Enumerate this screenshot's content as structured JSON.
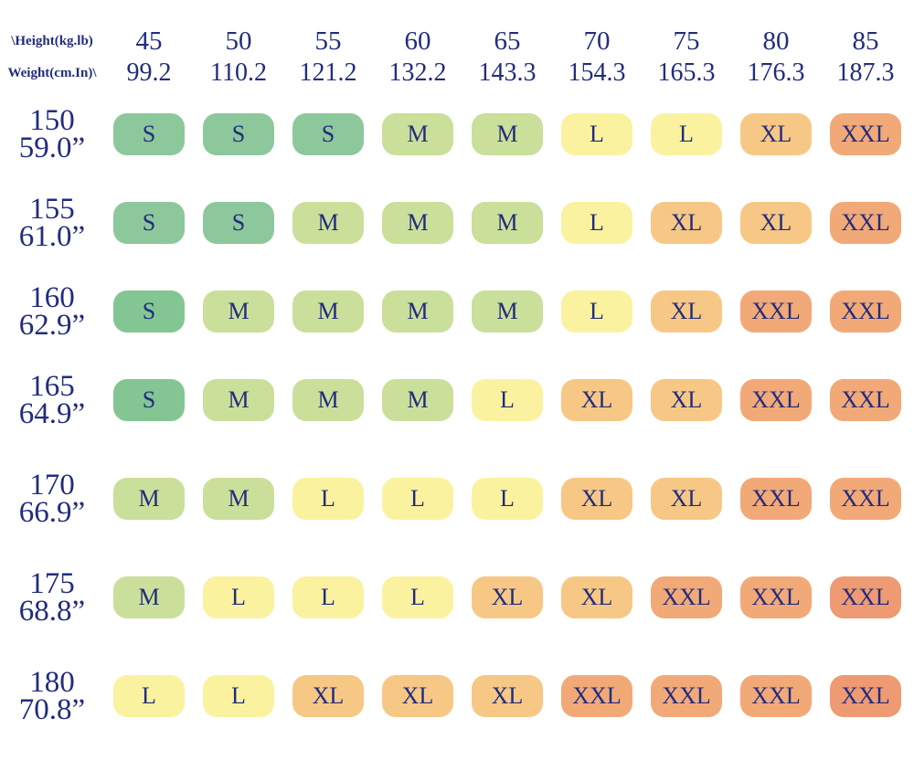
{
  "page": {
    "background": "#ffffff",
    "text_color": "#222c7d"
  },
  "chart_data": {
    "type": "table",
    "title": "",
    "corner_label_top": "\\Height(kg.lb)",
    "corner_label_bottom": "Weight(cm.In)\\",
    "columns_kg": [
      "45",
      "50",
      "55",
      "60",
      "65",
      "70",
      "75",
      "80",
      "85"
    ],
    "columns_lb": [
      "99.2",
      "110.2",
      "121.2",
      "132.2",
      "143.3",
      "154.3",
      "165.3",
      "176.3",
      "187.3"
    ],
    "rows_cm": [
      "150",
      "155",
      "160",
      "165",
      "170",
      "175",
      "180"
    ],
    "rows_in": [
      "59.0”",
      "61.0”",
      "62.9”",
      "64.9”",
      "66.9”",
      "68.8”",
      "70.8”"
    ],
    "sizes": [
      [
        "S",
        "S",
        "S",
        "M",
        "M",
        "L",
        "L",
        "XL",
        "XXL"
      ],
      [
        "S",
        "S",
        "M",
        "M",
        "M",
        "L",
        "XL",
        "XL",
        "XXL"
      ],
      [
        "S",
        "M",
        "M",
        "M",
        "M",
        "L",
        "XL",
        "XXL",
        "XXL"
      ],
      [
        "S",
        "M",
        "M",
        "M",
        "L",
        "XL",
        "XL",
        "XXL",
        "XXL"
      ],
      [
        "M",
        "M",
        "L",
        "L",
        "L",
        "XL",
        "XL",
        "XXL",
        "XXL"
      ],
      [
        "M",
        "L",
        "L",
        "L",
        "XL",
        "XL",
        "XXL",
        "XXL",
        "XXL"
      ],
      [
        "L",
        "L",
        "XL",
        "XL",
        "XL",
        "XXL",
        "XXL",
        "XXL",
        "XXL"
      ]
    ],
    "cell_colors": [
      [
        "s",
        "s",
        "s",
        "m",
        "m",
        "l",
        "l",
        "xl",
        "xxl"
      ],
      [
        "s",
        "s",
        "m",
        "m",
        "m",
        "l",
        "xl",
        "xl",
        "xxl"
      ],
      [
        "s2",
        "m",
        "m",
        "m",
        "m",
        "l",
        "xl",
        "xxl",
        "xxl"
      ],
      [
        "s2",
        "m",
        "m",
        "m",
        "l",
        "xl",
        "xl",
        "xxl",
        "xxl"
      ],
      [
        "m",
        "m",
        "l",
        "l",
        "l",
        "xl",
        "xl",
        "xxl",
        "xxl"
      ],
      [
        "m",
        "l",
        "l",
        "l",
        "xl",
        "xl",
        "xxl",
        "xxl",
        "xxl2"
      ],
      [
        "l",
        "l",
        "xl",
        "xl",
        "xl",
        "xxl",
        "xxl",
        "xxl",
        "xxl2"
      ]
    ],
    "palette": {
      "s": "#8dc89c",
      "s2": "#83c693",
      "m": "#cadf9a",
      "l": "#fbf2a0",
      "xl": "#f7c885",
      "xxl": "#f2a978",
      "xxl2": "#ee9a72"
    },
    "legend": "none",
    "grid": "off"
  }
}
